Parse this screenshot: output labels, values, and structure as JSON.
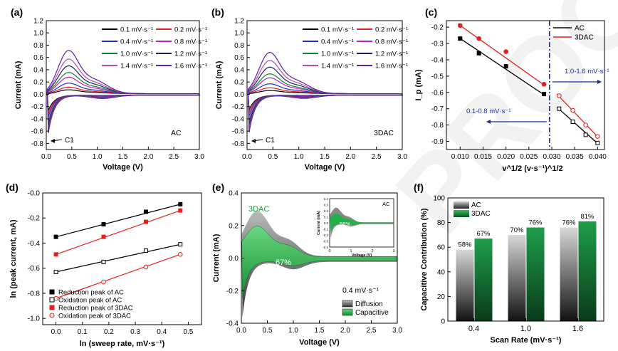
{
  "watermark": "PROOF",
  "chart_data": [
    {
      "panel": "(a)",
      "type": "line",
      "title": "",
      "xlabel": "Voltage (V)",
      "ylabel": "Current (mA)",
      "xlim": [
        0,
        3.0
      ],
      "ylim": [
        -0.9,
        1.2
      ],
      "xticks": [
        "0.0",
        "0.5",
        "1.0",
        "1.5",
        "2.0",
        "2.5",
        "3.0"
      ],
      "yticks": [
        "-0.8",
        "-0.6",
        "-0.4",
        "-0.2",
        "0.0",
        "0.2",
        "0.4",
        "0.6",
        "0.8",
        "1.0",
        "1.2"
      ],
      "annotation": "C1",
      "label": "AC",
      "legend": [
        "0.1 mV·s⁻¹",
        "0.2 mV·s⁻¹",
        "0.4 mV·s⁻¹",
        "0.8 mV·s⁻¹",
        "1.0 mV·s⁻¹",
        "1.2 mV·s⁻¹",
        "1.4 mV·s⁻¹",
        "1.6 mV·s⁻¹"
      ],
      "series": [
        {
          "name": "0.1 mV·s⁻¹",
          "color": "#000000",
          "peak_ox": 0.06,
          "peak_red": -0.35
        },
        {
          "name": "0.2 mV·s⁻¹",
          "color": "#e02020",
          "peak_ox": 0.1,
          "peak_red": -0.42
        },
        {
          "name": "0.4 mV·s⁻¹",
          "color": "#2030c0",
          "peak_ox": 0.16,
          "peak_red": -0.5
        },
        {
          "name": "0.8 mV·s⁻¹",
          "color": "#c020c0",
          "peak_ox": 0.25,
          "peak_red": -0.6
        },
        {
          "name": "1.0 mV·s⁻¹",
          "color": "#108030",
          "peak_ox": 0.32,
          "peak_red": -0.66
        },
        {
          "name": "1.2 mV·s⁻¹",
          "color": "#202060",
          "peak_ox": 0.42,
          "peak_red": -0.72
        },
        {
          "name": "1.4 mV·s⁻¹",
          "color": "#b050b0",
          "peak_ox": 0.52,
          "peak_red": -0.8
        },
        {
          "name": "1.6 mV·s⁻¹",
          "color": "#6020a0",
          "peak_ox": 0.65,
          "peak_red": -0.86
        }
      ]
    },
    {
      "panel": "(b)",
      "type": "line",
      "xlabel": "Voltage (V)",
      "ylabel": "Current (mA)",
      "xlim": [
        0,
        3.0
      ],
      "ylim": [
        -0.9,
        1.2
      ],
      "xticks": [
        "0.0",
        "0.5",
        "1.0",
        "1.5",
        "2.0",
        "2.5",
        "3.0"
      ],
      "yticks": [
        "-0.8",
        "-0.6",
        "-0.4",
        "-0.2",
        "0.0",
        "0.2",
        "0.4",
        "0.6",
        "0.8",
        "1.0",
        "1.2"
      ],
      "annotation": "C1",
      "label": "3DAC",
      "legend": [
        "0.1 mV·s⁻¹",
        "0.2 mV·s⁻¹",
        "0.4 mV·s⁻¹",
        "0.8 mV·s⁻¹",
        "1.0 mV·s⁻¹",
        "1.2 mV·s⁻¹",
        "1.4 mV·s⁻¹",
        "1.6 mV·s⁻¹"
      ],
      "series": [
        {
          "name": "0.1 mV·s⁻¹",
          "color": "#000000",
          "peak_ox": 0.05,
          "peak_red": -0.33
        },
        {
          "name": "0.2 mV·s⁻¹",
          "color": "#e02020",
          "peak_ox": 0.09,
          "peak_red": -0.4
        },
        {
          "name": "0.4 mV·s⁻¹",
          "color": "#2030c0",
          "peak_ox": 0.15,
          "peak_red": -0.48
        },
        {
          "name": "0.8 mV·s⁻¹",
          "color": "#c020c0",
          "peak_ox": 0.24,
          "peak_red": -0.58
        },
        {
          "name": "1.0 mV·s⁻¹",
          "color": "#108030",
          "peak_ox": 0.3,
          "peak_red": -0.64
        },
        {
          "name": "1.2 mV·s⁻¹",
          "color": "#202060",
          "peak_ox": 0.4,
          "peak_red": -0.7
        },
        {
          "name": "1.4 mV·s⁻¹",
          "color": "#b050b0",
          "peak_ox": 0.5,
          "peak_red": -0.78
        },
        {
          "name": "1.6 mV·s⁻¹",
          "color": "#6020a0",
          "peak_ox": 0.62,
          "peak_red": -0.84
        }
      ]
    },
    {
      "panel": "(c)",
      "type": "scatter",
      "xlabel": "v^1/2 (v·s⁻¹)^1/2",
      "ylabel": "I_p (mA)",
      "xlim": [
        0.007,
        0.0415
      ],
      "ylim": [
        -0.95,
        -0.16
      ],
      "xticks": [
        "0.010",
        "0.015",
        "0.020",
        "0.025",
        "0.030",
        "0.035",
        "0.040"
      ],
      "yticks": [
        "-0.2",
        "-0.3",
        "-0.4",
        "-0.5",
        "-0.6",
        "-0.7",
        "-0.8",
        "-0.9"
      ],
      "divider_x": 0.0295,
      "annotations": [
        "1.0-1.6 mV·s⁻¹",
        "0.1-0.8 mV·s⁻¹"
      ],
      "legend": [
        "AC",
        "3DAC"
      ],
      "series": [
        {
          "name": "AC",
          "color": "#000000",
          "marker": "square",
          "x": [
            0.01,
            0.0141,
            0.02,
            0.0283
          ],
          "y": [
            -0.27,
            -0.36,
            -0.44,
            -0.61
          ]
        },
        {
          "name": "3DAC",
          "color": "#e02020",
          "marker": "circle",
          "x": [
            0.01,
            0.0141,
            0.02,
            0.0283
          ],
          "y": [
            -0.19,
            -0.27,
            -0.35,
            -0.55
          ]
        },
        {
          "name": "AC",
          "color": "#000000",
          "marker": "square-open",
          "x": [
            0.0316,
            0.0346,
            0.0374,
            0.04
          ],
          "y": [
            -0.7,
            -0.78,
            -0.86,
            -0.91
          ]
        },
        {
          "name": "3DAC",
          "color": "#e02020",
          "marker": "circle-open",
          "x": [
            0.0316,
            0.0346,
            0.0374,
            0.04
          ],
          "y": [
            -0.62,
            -0.71,
            -0.8,
            -0.87
          ]
        }
      ]
    },
    {
      "panel": "(d)",
      "type": "scatter",
      "xlabel": "ln (sweep rate, mV·s⁻¹)",
      "ylabel": "ln (peak current, mA)",
      "xlim": [
        -0.05,
        0.55
      ],
      "ylim": [
        -1.05,
        0.0
      ],
      "xticks": [
        "0.0",
        "0.1",
        "0.2",
        "0.3",
        "0.4",
        "0.5"
      ],
      "yticks": [
        "-0.0",
        "-0.2",
        "-0.4",
        "-0.6",
        "-0.8",
        "-1.0"
      ],
      "legend": [
        "Reduction peak of AC",
        "Oxidation peak of AC",
        "Reduction peak of 3DAC",
        "Oxidation peak of 3DAC"
      ],
      "series": [
        {
          "name": "Reduction peak of AC",
          "color": "#000000",
          "marker": "square",
          "x": [
            0,
            0.18,
            0.34,
            0.47
          ],
          "y": [
            -0.35,
            -0.25,
            -0.15,
            -0.09
          ]
        },
        {
          "name": "Oxidation peak of AC",
          "color": "#000000",
          "marker": "square-open",
          "x": [
            0,
            0.18,
            0.34,
            0.47
          ],
          "y": [
            -0.63,
            -0.55,
            -0.46,
            -0.41
          ]
        },
        {
          "name": "Reduction peak of 3DAC",
          "color": "#e02020",
          "marker": "square",
          "x": [
            0,
            0.18,
            0.34,
            0.47
          ],
          "y": [
            -0.49,
            -0.35,
            -0.23,
            -0.14
          ]
        },
        {
          "name": "Oxidation peak of 3DAC",
          "color": "#e02020",
          "marker": "circle-open",
          "x": [
            0,
            0.18,
            0.34,
            0.47
          ],
          "y": [
            -0.84,
            -0.71,
            -0.59,
            -0.49
          ]
        }
      ]
    },
    {
      "panel": "(e)",
      "type": "area",
      "xlabel": "Voltage (V)",
      "ylabel": "Current (mA)",
      "xlim": [
        0,
        3.0
      ],
      "ylim": [
        -0.4,
        0.4
      ],
      "xticks": [
        "0.0",
        "0.5",
        "1.0",
        "1.5",
        "2.0",
        "2.5",
        "3.0"
      ],
      "yticks": [
        "-0.4",
        "-0.2",
        "0.0",
        "0.2",
        "0.4"
      ],
      "label": "3DAC",
      "percent": "67%",
      "rate_label": "0.4 mV·s⁻¹",
      "legend": [
        "Diffusion",
        "Capacitive"
      ],
      "inset": {
        "label": "AC",
        "percent": "58%",
        "xlabel": "Voltage (V)",
        "ylabel": "Current (mA)",
        "xticks": [
          "0",
          "1",
          "2",
          "3"
        ],
        "yticks": [
          "0.4",
          "0.3",
          "0.2",
          "0.1",
          "0.0",
          "-0.1",
          "-0.2",
          "-0.3",
          "-0.4"
        ]
      }
    },
    {
      "panel": "(f)",
      "type": "bar",
      "xlabel": "Scan Rate (mV·s⁻¹)",
      "ylabel": "Capacitive Contribution (%)",
      "ylim": [
        0,
        100
      ],
      "yticks": [
        "0",
        "20",
        "40",
        "60",
        "80",
        "100"
      ],
      "categories": [
        "0.4",
        "1.0",
        "1.6"
      ],
      "legend": [
        "AC",
        "3DAC"
      ],
      "series": [
        {
          "name": "AC",
          "values": [
            58,
            70,
            76
          ],
          "labels": [
            "58%",
            "70%",
            "76%"
          ]
        },
        {
          "name": "3DAC",
          "values": [
            67,
            76,
            81
          ],
          "labels": [
            "67%",
            "76%",
            "81%"
          ]
        }
      ]
    }
  ]
}
